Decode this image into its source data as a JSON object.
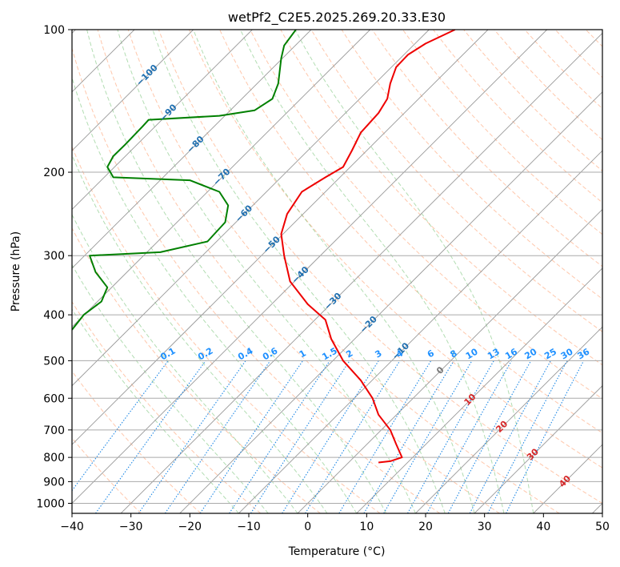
{
  "chart_data": {
    "type": "line",
    "title": "wetPf2_C2E5.2025.269.20.33.E30",
    "xlabel": "Temperature (°C)",
    "ylabel": "Pressure (hPa)",
    "xlim": [
      -40,
      50
    ],
    "ylim": [
      1050,
      100
    ],
    "y_scale": "log",
    "grid": true,
    "x_ticks": [
      "−40",
      "−30",
      "−20",
      "−10",
      "0",
      "10",
      "20",
      "30",
      "40",
      "50"
    ],
    "y_ticks": [
      "100",
      "200",
      "300",
      "400",
      "500",
      "600",
      "700",
      "800",
      "900",
      "1000"
    ],
    "isotherm_labels": [
      "−100",
      "−90",
      "−80",
      "−70",
      "−60",
      "−50",
      "−40",
      "−30",
      "−20",
      "−10",
      "0",
      "10",
      "20",
      "30",
      "40"
    ],
    "mixing_ratio_labels": [
      "0.1",
      "0.2",
      "0.4",
      "0.6",
      "1",
      "1.5",
      "2",
      "3",
      "4",
      "6",
      "8",
      "10",
      "13",
      "16",
      "20",
      "25",
      "30",
      "36"
    ],
    "series": [
      {
        "color": "#ee0000",
        "points": [
          [
            12,
            820
          ],
          [
            14,
            815
          ],
          [
            16,
            800
          ],
          [
            15,
            750
          ],
          [
            14,
            700
          ],
          [
            12,
            650
          ],
          [
            11,
            600
          ],
          [
            9,
            550
          ],
          [
            6,
            500
          ],
          [
            4,
            450
          ],
          [
            3,
            410
          ],
          [
            0,
            380
          ],
          [
            -3,
            340
          ],
          [
            -4,
            300
          ],
          [
            -4.5,
            270
          ],
          [
            -3.5,
            245
          ],
          [
            -1,
            220
          ],
          [
            3,
            205
          ],
          [
            6,
            195
          ],
          [
            7.5,
            180
          ],
          [
            9,
            165
          ],
          [
            12,
            150
          ],
          [
            13.5,
            140
          ],
          [
            14,
            130
          ],
          [
            15,
            120
          ],
          [
            17,
            113
          ],
          [
            20,
            107
          ],
          [
            25,
            100
          ]
        ]
      },
      {
        "color": "#008000",
        "points": [
          [
            -40,
            430
          ],
          [
            -38,
            400
          ],
          [
            -35,
            375
          ],
          [
            -34,
            350
          ],
          [
            -36,
            325
          ],
          [
            -37,
            300
          ],
          [
            -25,
            295
          ],
          [
            -17,
            280
          ],
          [
            -14,
            255
          ],
          [
            -13.5,
            235
          ],
          [
            -15,
            220
          ],
          [
            -20,
            208
          ],
          [
            -33,
            205
          ],
          [
            -34,
            195
          ],
          [
            -33,
            185
          ],
          [
            -31,
            175
          ],
          [
            -28,
            160
          ],
          [
            -27,
            155
          ],
          [
            -15,
            152
          ],
          [
            -9,
            148
          ],
          [
            -6,
            140
          ],
          [
            -5,
            130
          ],
          [
            -4.5,
            115
          ],
          [
            -4,
            108
          ],
          [
            -2,
            100
          ]
        ]
      }
    ],
    "colors": {
      "temperature": "#ee0000",
      "dewpoint": "#008000",
      "isotherm_label": "#1f6fb0",
      "mixing_ratio_label": "#1e90ff",
      "dry_adiabat": "#ff9966",
      "moist_adiabat": "#66bb66"
    }
  }
}
